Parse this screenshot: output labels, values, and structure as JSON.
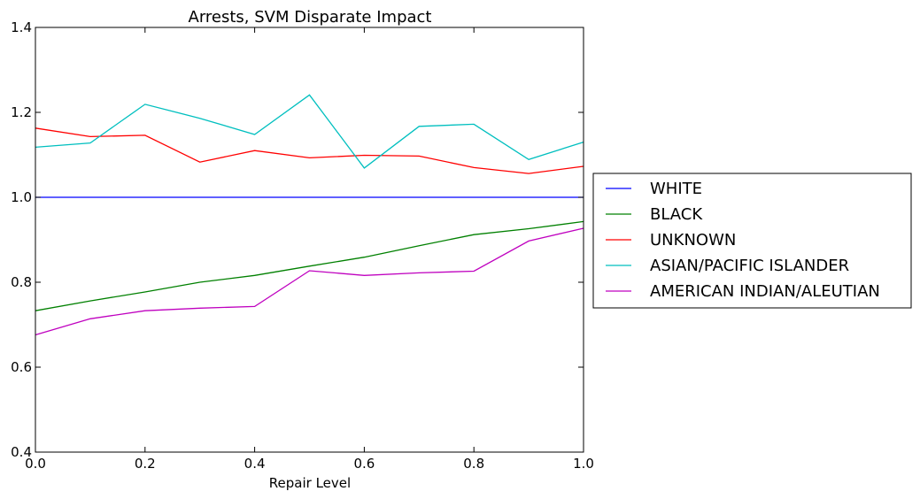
{
  "chart_data": {
    "type": "line",
    "title": "Arrests, SVM Disparate Impact",
    "xlabel": "Repair Level",
    "ylabel": "",
    "xlim": [
      0.0,
      1.0
    ],
    "ylim": [
      0.4,
      1.4
    ],
    "xticks": [
      "0.0",
      "0.2",
      "0.4",
      "0.6",
      "0.8",
      "1.0"
    ],
    "yticks": [
      "0.4",
      "0.6",
      "0.8",
      "1.0",
      "1.2",
      "1.4"
    ],
    "grid": false,
    "legend_position": "right, outside plot",
    "x": [
      0.0,
      0.1,
      0.2,
      0.3,
      0.4,
      0.5,
      0.6,
      0.7,
      0.8,
      0.9,
      1.0
    ],
    "series": [
      {
        "name": "WHITE",
        "color": "#0000ff",
        "values": [
          1.0,
          1.0,
          1.0,
          1.0,
          1.0,
          1.0,
          1.0,
          1.0,
          1.0,
          1.0,
          1.0
        ]
      },
      {
        "name": "BLACK",
        "color": "#008000",
        "values": [
          0.733,
          0.756,
          0.777,
          0.8,
          0.816,
          0.838,
          0.859,
          0.886,
          0.912,
          0.926,
          0.943
        ]
      },
      {
        "name": "UNKNOWN",
        "color": "#ff0000",
        "values": [
          1.163,
          1.143,
          1.146,
          1.083,
          1.11,
          1.093,
          1.099,
          1.097,
          1.07,
          1.056,
          1.073
        ]
      },
      {
        "name": "ASIAN/PACIFIC ISLANDER",
        "color": "#00bfbf",
        "values": [
          1.118,
          1.128,
          1.219,
          1.186,
          1.148,
          1.241,
          1.069,
          1.167,
          1.172,
          1.089,
          1.13
        ]
      },
      {
        "name": "AMERICAN INDIAN/ALEUTIAN",
        "color": "#bf00bf",
        "values": [
          0.676,
          0.714,
          0.733,
          0.739,
          0.743,
          0.827,
          0.816,
          0.822,
          0.826,
          0.897,
          0.927
        ]
      }
    ]
  }
}
